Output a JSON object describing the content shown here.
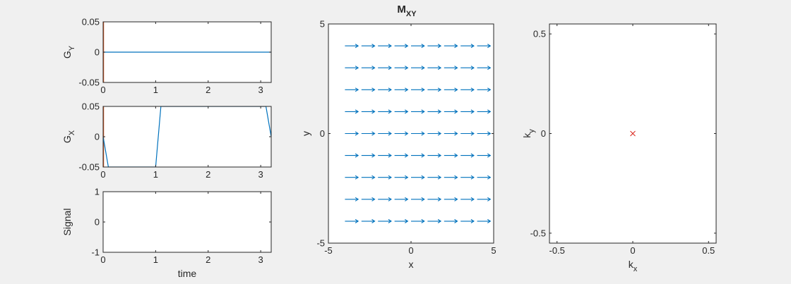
{
  "figure": {
    "background": "#f0f0f0"
  },
  "chart_data": [
    {
      "id": "gy",
      "type": "line",
      "ylabel": "G",
      "ylabel_sub": "Y",
      "xlabel": "",
      "xlim": [
        0,
        3.2
      ],
      "ylim": [
        -0.05,
        0.05
      ],
      "xticks": [
        0,
        1,
        2,
        3
      ],
      "xtick_labels": [
        "0",
        "1",
        "2",
        "3"
      ],
      "yticks": [
        -0.05,
        0,
        0.05
      ],
      "ytick_labels": [
        "-0.05",
        "0",
        "0.05"
      ],
      "grid": false,
      "series": [
        {
          "color": "#0072bd",
          "x": [
            0,
            3.2
          ],
          "y": [
            0,
            0
          ]
        }
      ],
      "markers": [
        {
          "color": "#d95319",
          "x": [
            0,
            0
          ],
          "y": [
            -0.05,
            0.05
          ]
        }
      ]
    },
    {
      "id": "gx",
      "type": "line",
      "ylabel": "G",
      "ylabel_sub": "X",
      "xlabel": "",
      "xlim": [
        0,
        3.2
      ],
      "ylim": [
        -0.05,
        0.05
      ],
      "xticks": [
        0,
        1,
        2,
        3
      ],
      "xtick_labels": [
        "0",
        "1",
        "2",
        "3"
      ],
      "yticks": [
        -0.05,
        0,
        0.05
      ],
      "ytick_labels": [
        "-0.05",
        "0",
        "0.05"
      ],
      "grid": false,
      "series": [
        {
          "color": "#0072bd",
          "x": [
            0,
            0.1,
            1.0,
            1.1,
            3.1,
            3.2
          ],
          "y": [
            0,
            -0.05,
            -0.05,
            0.05,
            0.05,
            0
          ]
        }
      ],
      "markers": [
        {
          "color": "#d95319",
          "x": [
            0,
            0
          ],
          "y": [
            -0.05,
            0.05
          ]
        }
      ]
    },
    {
      "id": "signal",
      "type": "line",
      "ylabel": "Signal",
      "ylabel_sub": "",
      "xlabel": "time",
      "xlim": [
        0,
        3.2
      ],
      "ylim": [
        -1,
        1
      ],
      "xticks": [
        0,
        1,
        2,
        3
      ],
      "xtick_labels": [
        "0",
        "1",
        "2",
        "3"
      ],
      "yticks": [
        -1,
        0,
        1
      ],
      "ytick_labels": [
        "-1",
        "0",
        "1"
      ],
      "grid": false,
      "series": []
    },
    {
      "id": "mxy",
      "type": "quiver",
      "title": "M",
      "title_sub": "XY",
      "xlabel": "x",
      "ylabel": "y",
      "xlim": [
        -5,
        5
      ],
      "ylim": [
        -5,
        5
      ],
      "xticks": [
        -5,
        0,
        5
      ],
      "xtick_labels": [
        "-5",
        "0",
        "5"
      ],
      "yticks": [
        -5,
        0,
        5
      ],
      "ytick_labels": [
        "-5",
        "0",
        "5"
      ],
      "grid": false,
      "color": "#0072bd",
      "x": [
        -4,
        -3,
        -2,
        -1,
        0,
        1,
        2,
        3,
        4
      ],
      "y": [
        4,
        3,
        2,
        1,
        0,
        -1,
        -2,
        -3,
        -4
      ],
      "u": 0.8,
      "v": 0
    },
    {
      "id": "kspace",
      "type": "scatter",
      "xlabel": "k",
      "xlabel_sub": "x",
      "ylabel": "k",
      "ylabel_sub": "y",
      "xlim": [
        -0.55,
        0.55
      ],
      "ylim": [
        -0.55,
        0.55
      ],
      "xticks": [
        -0.5,
        0,
        0.5
      ],
      "xtick_labels": [
        "-0.5",
        "0",
        "0.5"
      ],
      "yticks": [
        -0.5,
        0,
        0.5
      ],
      "ytick_labels": [
        "-0.5",
        "0",
        "0.5"
      ],
      "grid": false,
      "points": [
        {
          "x": 0,
          "y": 0,
          "marker": "x",
          "color": "#d9251c"
        }
      ]
    }
  ]
}
